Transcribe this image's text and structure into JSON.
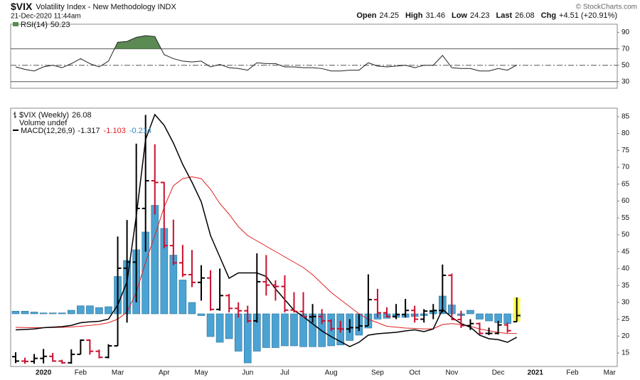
{
  "header": {
    "symbol": "$VIX",
    "name": "Volatility Index - New Methodology INDX",
    "datetime": "21-Dec-2020 11:44am",
    "open_label": "Open",
    "high_label": "High",
    "low_label": "Low",
    "last_label": "Last",
    "chg_label": "Chg",
    "chg": "+4.51 (+20.91%)",
    "credit": "© StockCharts.com"
  },
  "chart_data": [
    {
      "type": "rsi",
      "label": "RSI(14)",
      "color": "#222222",
      "fill_color": "#5b8a52",
      "fill_above": 70,
      "ylim": [
        22,
        100
      ],
      "yticks": [
        30,
        50,
        70,
        90
      ],
      "levels": [
        {
          "value": 70,
          "style": "solid"
        },
        {
          "value": 50,
          "style": "dashdot"
        },
        {
          "value": 30,
          "style": "solid"
        }
      ],
      "values": [
        48,
        45,
        43,
        48,
        50,
        47,
        52,
        58,
        52,
        48,
        55,
        78,
        79,
        84,
        86,
        85,
        63,
        58,
        55,
        54,
        55,
        48,
        51,
        47,
        46,
        44,
        53,
        52,
        52,
        48,
        48,
        47,
        47,
        46,
        43,
        43,
        44,
        44,
        53,
        49,
        48,
        49,
        50,
        47,
        50,
        50,
        62,
        47,
        46,
        46,
        43,
        43,
        46,
        44,
        50.23
      ]
    },
    {
      "type": "ohlc",
      "title": "$VIX (Weekly)",
      "volume_label": "Volume undef",
      "macd_label": "MACD(12,26,9)",
      "up_color": "#000000",
      "down_color": "#c8102e",
      "highlight_color": "#ffff55",
      "macd_color": "#000000",
      "signal_color": "#e02020",
      "hist_color": "#4ba3d3",
      "ylim": [
        11,
        87.5
      ],
      "yticks": [
        15,
        20,
        25,
        30,
        35,
        40,
        45,
        50,
        55,
        60,
        65,
        70,
        75,
        80,
        85
      ],
      "y2lim": [
        -2.96,
        11.56
      ],
      "categories": [
        null,
        null,
        null,
        "2020",
        null,
        null,
        null,
        "Feb",
        null,
        null,
        null,
        "Mar",
        null,
        null,
        null,
        null,
        "Apr",
        null,
        null,
        null,
        "May",
        null,
        null,
        null,
        null,
        "Jun",
        null,
        null,
        null,
        "Jul",
        null,
        null,
        null,
        null,
        "Aug",
        null,
        null,
        null,
        null,
        "Sep",
        null,
        null,
        null,
        "Oct",
        null,
        null,
        null,
        "Nov",
        null,
        null,
        null,
        null,
        "Dec",
        null,
        null,
        null,
        "2021",
        null,
        null,
        null,
        "Feb",
        null,
        null,
        null,
        "Mar",
        null,
        null
      ],
      "open": [
        13.9,
        12.6,
        12.5,
        13.4,
        14.0,
        12.6,
        12.1,
        14.6,
        18.8,
        15.5,
        13.7,
        17.1,
        40.1,
        41.9,
        57.8,
        66.0,
        65.5,
        46.8,
        41.7,
        38.2,
        35.9,
        37.2,
        27.9,
        32.0,
        28.2,
        27.5,
        24.5,
        36.1,
        35.1,
        34.7,
        27.7,
        27.3,
        25.7,
        25.8,
        24.5,
        22.2,
        22.1,
        22.5,
        23.0,
        30.8,
        26.9,
        25.8,
        26.4,
        27.6,
        25.0,
        27.4,
        27.6,
        38.0,
        24.9,
        23.1,
        23.7,
        20.8,
        20.8,
        23.3,
        24.25,
        null,
        null,
        null,
        null,
        null,
        null,
        null,
        null,
        null,
        null,
        null,
        null
      ],
      "high": [
        15.2,
        13.6,
        14.7,
        16.2,
        15.0,
        13.0,
        16.1,
        19.0,
        19.0,
        16.0,
        17.6,
        49.5,
        54.4,
        77.0,
        85.5,
        76.8,
        65.6,
        54.5,
        47.0,
        45.5,
        41.0,
        39.5,
        40.0,
        32.5,
        30.0,
        29.0,
        44.5,
        44.0,
        36.5,
        38.0,
        33.0,
        33.0,
        29.5,
        28.0,
        25.0,
        24.5,
        25.0,
        26.5,
        38.3,
        34.0,
        28.5,
        29.5,
        31.0,
        29.0,
        28.0,
        29.5,
        41.2,
        38.5,
        27.5,
        25.0,
        24.0,
        22.5,
        24.5,
        24.0,
        31.46,
        null,
        null,
        null,
        null,
        null,
        null,
        null,
        null,
        null,
        null,
        null,
        null
      ],
      "low": [
        12.0,
        11.8,
        11.8,
        11.9,
        12.4,
        11.8,
        11.8,
        14.6,
        14.5,
        13.4,
        13.4,
        17.1,
        24.0,
        30.0,
        45.0,
        56.0,
        46.0,
        41.0,
        37.5,
        34.5,
        30.5,
        27.5,
        27.5,
        27.0,
        25.5,
        24.0,
        24.0,
        32.0,
        30.5,
        27.0,
        27.0,
        25.5,
        24.0,
        23.5,
        21.5,
        21.0,
        21.0,
        21.5,
        23.0,
        25.5,
        25.5,
        25.0,
        25.5,
        24.0,
        24.0,
        25.0,
        27.0,
        24.8,
        22.4,
        21.8,
        20.5,
        20.3,
        20.5,
        21.0,
        24.23,
        null,
        null,
        null,
        null,
        null,
        null,
        null,
        null,
        null,
        null,
        null,
        null
      ],
      "close": [
        12.6,
        12.5,
        13.4,
        14.0,
        12.6,
        12.1,
        14.6,
        18.8,
        15.5,
        13.7,
        17.1,
        40.1,
        41.9,
        57.8,
        66.0,
        65.5,
        46.8,
        41.7,
        38.2,
        35.9,
        37.2,
        27.9,
        32.0,
        28.2,
        27.5,
        24.5,
        36.1,
        35.1,
        34.7,
        27.7,
        27.3,
        25.7,
        25.8,
        24.5,
        22.2,
        22.1,
        22.5,
        23.0,
        30.8,
        26.9,
        25.8,
        26.4,
        27.6,
        25.0,
        27.4,
        27.6,
        38.0,
        24.9,
        23.1,
        23.7,
        20.8,
        20.8,
        23.3,
        21.6,
        26.08,
        null,
        null,
        null,
        null,
        null,
        null,
        null,
        null,
        null,
        null,
        null,
        null
      ],
      "macd": [
        -0.9,
        -0.88,
        -0.85,
        -0.78,
        -0.75,
        -0.72,
        -0.65,
        -0.5,
        -0.45,
        -0.42,
        -0.3,
        0.5,
        1.8,
        5.5,
        9.8,
        11.2,
        10.6,
        9.6,
        8.4,
        7.4,
        6.3,
        4.4,
        3.2,
        2.0,
        2.3,
        2.3,
        2.3,
        2.1,
        1.4,
        0.8,
        0.2,
        -0.16,
        -0.56,
        -0.96,
        -1.28,
        -1.56,
        -1.84,
        -1.6,
        -1.2,
        -1.12,
        -1.08,
        -1.04,
        -0.96,
        -0.9,
        -1.0,
        -0.85,
        0.25,
        -0.2,
        -0.55,
        -0.75,
        -1.2,
        -1.4,
        -1.45,
        -1.6,
        -1.317,
        null,
        null,
        null,
        null,
        null,
        null,
        null,
        null,
        null,
        null,
        null,
        null
      ],
      "signal": [
        -0.76,
        -0.77,
        -0.78,
        -0.78,
        -0.77,
        -0.76,
        -0.74,
        -0.7,
        -0.65,
        -0.6,
        -0.5,
        -0.3,
        0.1,
        1.2,
        2.9,
        4.4,
        6.0,
        7.2,
        7.6,
        7.7,
        7.6,
        7.0,
        6.2,
        5.6,
        4.9,
        4.4,
        4.1,
        3.8,
        3.5,
        3.2,
        2.9,
        2.6,
        2.2,
        1.7,
        1.2,
        0.8,
        0.4,
        0.0,
        -0.3,
        -0.5,
        -0.7,
        -0.75,
        -0.8,
        -0.82,
        -0.85,
        -0.84,
        -0.6,
        -0.55,
        -0.6,
        -0.7,
        -0.85,
        -0.95,
        -1.05,
        -1.1,
        -1.103,
        null,
        null,
        null,
        null,
        null,
        null,
        null,
        null,
        null,
        null,
        null,
        null
      ],
      "hist": [
        0.15,
        0.15,
        0.1,
        0.05,
        0.05,
        0.05,
        0.2,
        0.45,
        0.45,
        0.35,
        0.4,
        2.1,
        3.0,
        3.6,
        4.6,
        6.1,
        4.8,
        3.3,
        1.9,
        0.64,
        -0.1,
        -1.28,
        -1.6,
        -1.4,
        -2.1,
        -2.76,
        -2.1,
        -1.9,
        -1.9,
        -1.8,
        -1.8,
        -1.85,
        -1.85,
        -1.85,
        -1.8,
        -1.75,
        -1.5,
        -1.2,
        -0.8,
        -0.3,
        -0.25,
        -0.2,
        -0.2,
        -0.15,
        -0.1,
        0.2,
        1.0,
        0.5,
        -0.1,
        0.2,
        -0.3,
        -0.4,
        -0.5,
        -0.55,
        -0.214,
        null,
        null,
        null,
        null,
        null,
        null,
        null,
        null,
        null,
        null,
        null,
        null
      ]
    }
  ]
}
